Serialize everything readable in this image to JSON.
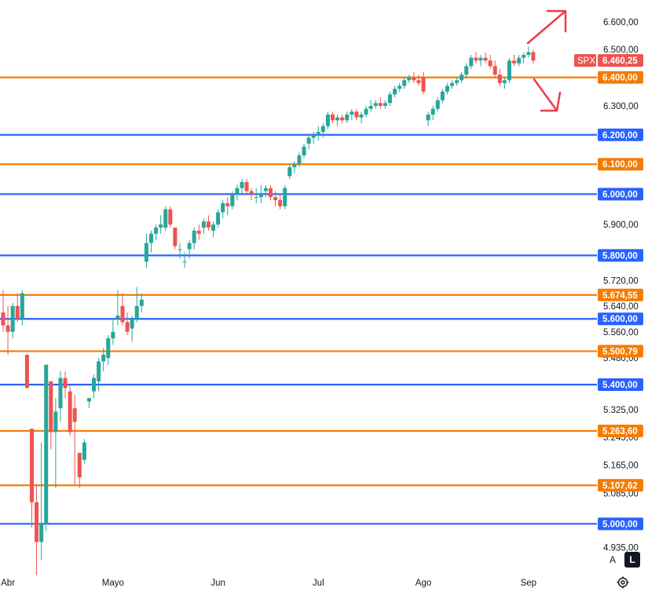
{
  "chart_data": {
    "type": "candlestick",
    "symbol": "SPX",
    "last_price": "6.460,25",
    "y_scale": "log",
    "ylim": [
      4870,
      6680
    ],
    "y_ticks": [
      {
        "v": 6600,
        "label": "6.600,00"
      },
      {
        "v": 6500,
        "label": "6.500,00"
      },
      {
        "v": 6300,
        "label": "6.300,00"
      },
      {
        "v": 5900,
        "label": "5.900,00"
      },
      {
        "v": 5720,
        "label": "5.720,00"
      },
      {
        "v": 5640,
        "label": "5.640,00"
      },
      {
        "v": 5560,
        "label": "5.560,00"
      },
      {
        "v": 5480,
        "label": "5.480,00"
      },
      {
        "v": 5325,
        "label": "5.325,00"
      },
      {
        "v": 5245,
        "label": "5.245,00"
      },
      {
        "v": 5165,
        "label": "5.165,00"
      },
      {
        "v": 5085,
        "label": "5.085,00"
      },
      {
        "v": 4935,
        "label": "4.935,00"
      }
    ],
    "x_ticks": [
      {
        "label": "Abr",
        "index": 1
      },
      {
        "label": "Mayo",
        "index": 23
      },
      {
        "label": "Jun",
        "index": 45
      },
      {
        "label": "Jul",
        "index": 66
      },
      {
        "label": "Ago",
        "index": 88
      },
      {
        "label": "Sep",
        "index": 110
      }
    ],
    "levels": [
      {
        "v": 6400,
        "label": "6.400,00",
        "color": "#f57c00"
      },
      {
        "v": 6200,
        "label": "6.200,00",
        "color": "#2962ff"
      },
      {
        "v": 6100,
        "label": "6.100,00",
        "color": "#f57c00"
      },
      {
        "v": 6000,
        "label": "6.000,00",
        "color": "#2962ff"
      },
      {
        "v": 5800,
        "label": "5.800,00",
        "color": "#2962ff"
      },
      {
        "v": 5674.55,
        "label": "5.674,55",
        "color": "#f57c00"
      },
      {
        "v": 5600,
        "label": "5.600,00",
        "color": "#2962ff"
      },
      {
        "v": 5500.79,
        "label": "5.500,79",
        "color": "#f57c00"
      },
      {
        "v": 5400,
        "label": "5.400,00",
        "color": "#2962ff"
      },
      {
        "v": 5263.6,
        "label": "5.263,60",
        "color": "#f57c00"
      },
      {
        "v": 5107.62,
        "label": "5.107,62",
        "color": "#f57c00"
      },
      {
        "v": 5000,
        "label": "5.000,00",
        "color": "#2962ff"
      }
    ],
    "candles": [
      [
        5620,
        5690,
        5560,
        5580
      ],
      [
        5580,
        5640,
        5490,
        5560
      ],
      [
        5560,
        5650,
        5540,
        5640
      ],
      [
        5640,
        5680,
        5590,
        5600
      ],
      [
        5600,
        5690,
        5580,
        5680
      ],
      [
        5490,
        5490,
        5390,
        5390
      ],
      [
        5270,
        5270,
        4990,
        5060
      ],
      [
        5060,
        5110,
        4860,
        4950
      ],
      [
        4950,
        5230,
        4900,
        5000
      ],
      [
        5000,
        5460,
        4980,
        5460
      ],
      [
        5410,
        5410,
        5210,
        5260
      ],
      [
        5260,
        5360,
        5100,
        5320
      ],
      [
        5330,
        5440,
        5290,
        5420
      ],
      [
        5420,
        5440,
        5360,
        5390
      ],
      [
        5380,
        5400,
        5250,
        5260
      ],
      [
        5330,
        5370,
        5110,
        5290
      ],
      [
        5200,
        5200,
        5100,
        5130
      ],
      [
        5180,
        5240,
        5170,
        5230
      ],
      [
        5350,
        5360,
        5330,
        5360
      ],
      [
        5380,
        5430,
        5360,
        5420
      ],
      [
        5410,
        5480,
        5380,
        5470
      ],
      [
        5470,
        5510,
        5440,
        5490
      ],
      [
        5480,
        5550,
        5460,
        5540
      ],
      [
        5540,
        5600,
        5520,
        5560
      ],
      [
        5600,
        5690,
        5580,
        5610
      ],
      [
        5640,
        5680,
        5580,
        5590
      ],
      [
        5590,
        5620,
        5550,
        5560
      ],
      [
        5570,
        5610,
        5530,
        5600
      ],
      [
        5600,
        5700,
        5590,
        5640
      ],
      [
        5640,
        5680,
        5620,
        5660
      ],
      [
        5780,
        5870,
        5760,
        5840
      ],
      [
        5840,
        5880,
        5810,
        5870
      ],
      [
        5870,
        5900,
        5850,
        5890
      ],
      [
        5890,
        5930,
        5870,
        5900
      ],
      [
        5890,
        5960,
        5880,
        5950
      ],
      [
        5950,
        5960,
        5890,
        5900
      ],
      [
        5890,
        5890,
        5820,
        5830
      ],
      [
        5820,
        5840,
        5790,
        5820
      ],
      [
        5780,
        5810,
        5760,
        5780
      ],
      [
        5820,
        5850,
        5790,
        5840
      ],
      [
        5840,
        5890,
        5820,
        5880
      ],
      [
        5880,
        5900,
        5850,
        5870
      ],
      [
        5890,
        5920,
        5870,
        5910
      ],
      [
        5910,
        5930,
        5880,
        5890
      ],
      [
        5880,
        5910,
        5860,
        5900
      ],
      [
        5900,
        5950,
        5890,
        5940
      ],
      [
        5940,
        5980,
        5920,
        5970
      ],
      [
        5970,
        5990,
        5930,
        5960
      ],
      [
        5960,
        6010,
        5950,
        6000
      ],
      [
        6000,
        6030,
        5980,
        6020
      ],
      [
        6020,
        6050,
        6000,
        6040
      ],
      [
        6040,
        6050,
        6000,
        6010
      ],
      [
        6010,
        6020,
        5980,
        6000
      ],
      [
        5990,
        6020,
        5970,
        5990
      ],
      [
        5990,
        6030,
        5970,
        6000
      ],
      [
        6010,
        6030,
        5990,
        6020
      ],
      [
        6020,
        6030,
        5980,
        5990
      ],
      [
        5990,
        6010,
        5960,
        5980
      ],
      [
        5980,
        6000,
        5950,
        5960
      ],
      [
        5960,
        6030,
        5950,
        6020
      ],
      [
        6060,
        6100,
        6050,
        6090
      ],
      [
        6090,
        6110,
        6070,
        6100
      ],
      [
        6100,
        6140,
        6090,
        6130
      ],
      [
        6130,
        6170,
        6120,
        6160
      ],
      [
        6170,
        6200,
        6150,
        6190
      ],
      [
        6190,
        6210,
        6170,
        6200
      ],
      [
        6200,
        6230,
        6180,
        6210
      ],
      [
        6210,
        6240,
        6190,
        6230
      ],
      [
        6230,
        6280,
        6220,
        6270
      ],
      [
        6270,
        6280,
        6240,
        6250
      ],
      [
        6250,
        6270,
        6230,
        6260
      ],
      [
        6260,
        6270,
        6240,
        6250
      ],
      [
        6250,
        6280,
        6240,
        6270
      ],
      [
        6270,
        6290,
        6250,
        6280
      ],
      [
        6280,
        6290,
        6250,
        6260
      ],
      [
        6260,
        6280,
        6240,
        6270
      ],
      [
        6270,
        6300,
        6260,
        6290
      ],
      [
        6290,
        6320,
        6280,
        6300
      ],
      [
        6300,
        6320,
        6290,
        6310
      ],
      [
        6310,
        6330,
        6290,
        6300
      ],
      [
        6300,
        6320,
        6290,
        6310
      ],
      [
        6310,
        6350,
        6300,
        6340
      ],
      [
        6340,
        6370,
        6330,
        6360
      ],
      [
        6360,
        6380,
        6350,
        6370
      ],
      [
        6370,
        6400,
        6360,
        6390
      ],
      [
        6390,
        6410,
        6380,
        6400
      ],
      [
        6400,
        6420,
        6380,
        6390
      ],
      [
        6390,
        6410,
        6370,
        6380
      ],
      [
        6400,
        6420,
        6340,
        6350
      ],
      [
        6250,
        6280,
        6230,
        6270
      ],
      [
        6270,
        6300,
        6250,
        6290
      ],
      [
        6290,
        6330,
        6280,
        6320
      ],
      [
        6320,
        6360,
        6310,
        6350
      ],
      [
        6350,
        6380,
        6340,
        6370
      ],
      [
        6370,
        6390,
        6360,
        6380
      ],
      [
        6380,
        6400,
        6370,
        6390
      ],
      [
        6390,
        6420,
        6380,
        6410
      ],
      [
        6410,
        6450,
        6400,
        6440
      ],
      [
        6440,
        6480,
        6430,
        6470
      ],
      [
        6470,
        6490,
        6450,
        6460
      ],
      [
        6460,
        6480,
        6440,
        6470
      ],
      [
        6470,
        6490,
        6450,
        6460
      ],
      [
        6460,
        6480,
        6430,
        6440
      ],
      [
        6440,
        6460,
        6400,
        6410
      ],
      [
        6410,
        6430,
        6370,
        6380
      ],
      [
        6380,
        6400,
        6360,
        6390
      ],
      [
        6390,
        6470,
        6380,
        6460
      ],
      [
        6460,
        6480,
        6440,
        6450
      ],
      [
        6450,
        6480,
        6440,
        6470
      ],
      [
        6470,
        6490,
        6450,
        6480
      ],
      [
        6480,
        6510,
        6470,
        6490
      ],
      [
        6490,
        6500,
        6450,
        6460
      ]
    ]
  },
  "icons": {
    "settings": "gear-icon",
    "arrow_up": "arrow-up-icon",
    "arrow_down": "arrow-down-icon"
  },
  "controls": {
    "auto_label": "A",
    "log_label": "L"
  },
  "colors": {
    "up": "#26a69a",
    "down": "#ef5350",
    "badge": "#ef5350",
    "text": "#131722"
  }
}
